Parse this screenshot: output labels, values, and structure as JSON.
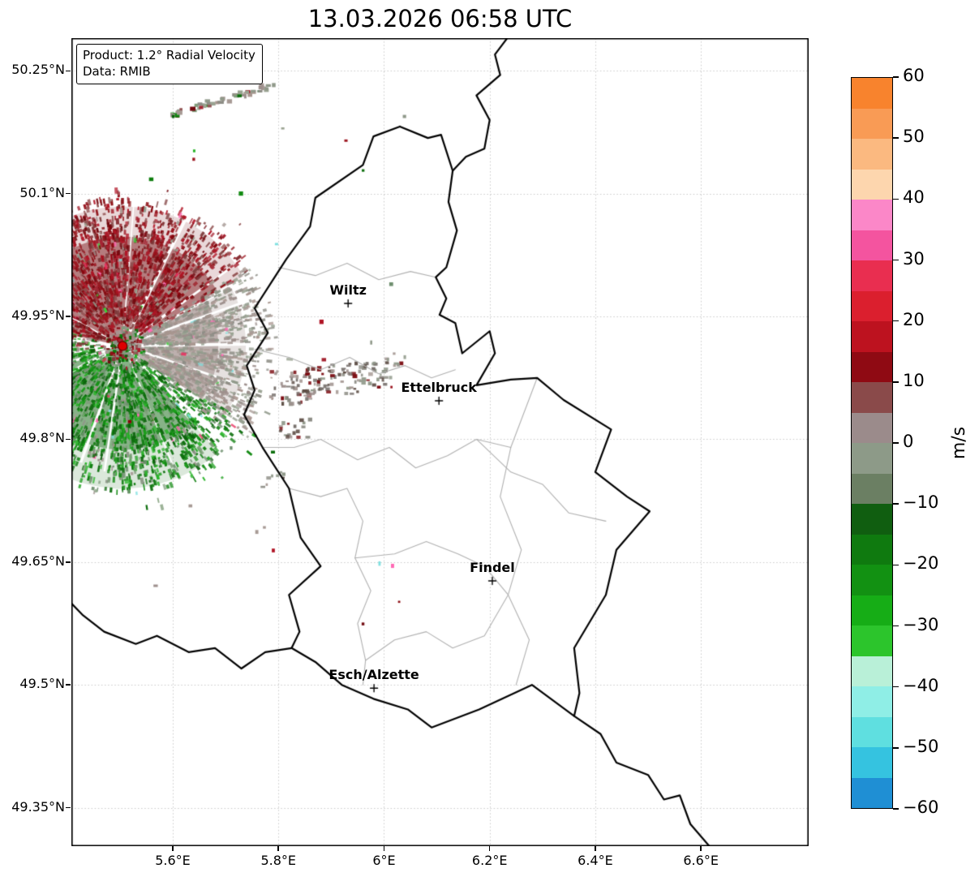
{
  "title": "13.03.2026 06:58 UTC",
  "info_box": {
    "product_line": "Product: 1.2° Radial Velocity",
    "data_line": "Data: RMIB"
  },
  "chart_data": {
    "type": "heatmap",
    "title": "13.03.2026 06:58 UTC",
    "product": "1.2° Radial Velocity",
    "data_source": "RMIB",
    "units": "m/s",
    "grid": true,
    "x_axis": {
      "range": [
        5.408,
        6.804
      ],
      "ticks": [
        5.6,
        5.8,
        6.0,
        6.2,
        6.4,
        6.6
      ],
      "tick_labels": [
        "5.6°E",
        "5.8°E",
        "6°E",
        "6.2°E",
        "6.4°E",
        "6.6°E"
      ]
    },
    "y_axis": {
      "range": [
        49.303,
        50.29
      ],
      "ticks": [
        50.25,
        50.1,
        49.95,
        49.8,
        49.65,
        49.5,
        49.35
      ],
      "tick_labels": [
        "50.25°N",
        "50.1°N",
        "49.95°N",
        "49.8°N",
        "49.65°N",
        "49.5°N",
        "49.35°N"
      ]
    },
    "colorbar": {
      "label": "m/s",
      "min": -60,
      "max": 60,
      "tick_values": [
        60,
        50,
        40,
        30,
        20,
        10,
        0,
        -10,
        -20,
        -30,
        -40,
        -50,
        -60
      ],
      "tick_labels": [
        "60",
        "50",
        "40",
        "30",
        "20",
        "10",
        "0",
        "−10",
        "−20",
        "−30",
        "−40",
        "−50",
        "−60"
      ],
      "segments": [
        {
          "from": 55,
          "to": 60,
          "color": "#f8832d"
        },
        {
          "from": 50,
          "to": 55,
          "color": "#f99b55"
        },
        {
          "from": 45,
          "to": 50,
          "color": "#fbb980"
        },
        {
          "from": 40,
          "to": 45,
          "color": "#fdd6ae"
        },
        {
          "from": 35,
          "to": 40,
          "color": "#fb87c8"
        },
        {
          "from": 30,
          "to": 35,
          "color": "#f4549f"
        },
        {
          "from": 25,
          "to": 30,
          "color": "#e92e50"
        },
        {
          "from": 20,
          "to": 25,
          "color": "#db1f2e"
        },
        {
          "from": 15,
          "to": 20,
          "color": "#bd121f"
        },
        {
          "from": 10,
          "to": 15,
          "color": "#8f0a13"
        },
        {
          "from": 5,
          "to": 10,
          "color": "#8a4a4a"
        },
        {
          "from": 0,
          "to": 5,
          "color": "#9b8b8b"
        },
        {
          "from": -5,
          "to": 0,
          "color": "#8d9a88"
        },
        {
          "from": -10,
          "to": -5,
          "color": "#6b7f63"
        },
        {
          "from": -15,
          "to": -10,
          "color": "#105e10"
        },
        {
          "from": -20,
          "to": -15,
          "color": "#0f7a0f"
        },
        {
          "from": -25,
          "to": -20,
          "color": "#129112"
        },
        {
          "from": -30,
          "to": -25,
          "color": "#16ad16"
        },
        {
          "from": -35,
          "to": -30,
          "color": "#2cc52c"
        },
        {
          "from": -40,
          "to": -35,
          "color": "#b9f0d8"
        },
        {
          "from": -45,
          "to": -40,
          "color": "#8feee6"
        },
        {
          "from": -50,
          "to": -45,
          "color": "#5fdfe0"
        },
        {
          "from": -55,
          "to": -50,
          "color": "#35c3e0"
        },
        {
          "from": -60,
          "to": -55,
          "color": "#1f8fd4"
        }
      ]
    },
    "radar_site": {
      "lon": 5.505,
      "lat": 49.914,
      "marker_color": "#dd0000"
    },
    "echo_summary": {
      "receding_red_sector_deg": [
        282,
        60
      ],
      "near_zero_gray_sector_deg": [
        60,
        124
      ],
      "approaching_green_sector_deg": [
        138,
        258
      ]
    },
    "cities": [
      {
        "name": "Wiltz",
        "lon": 5.932,
        "lat": 49.966
      },
      {
        "name": "Ettelbruck",
        "lon": 6.104,
        "lat": 49.847
      },
      {
        "name": "Findel",
        "lon": 6.205,
        "lat": 49.627
      },
      {
        "name": "Esch/Alzette",
        "lon": 5.981,
        "lat": 49.496
      }
    ]
  },
  "map": {
    "country_border": [
      [
        6.03,
        50.182
      ],
      [
        6.083,
        50.168
      ],
      [
        6.108,
        50.172
      ],
      [
        6.13,
        50.128
      ],
      [
        6.122,
        50.09
      ],
      [
        6.138,
        50.055
      ],
      [
        6.118,
        50.01
      ],
      [
        6.098,
        49.998
      ],
      [
        6.118,
        49.972
      ],
      [
        6.105,
        49.952
      ],
      [
        6.135,
        49.942
      ],
      [
        6.148,
        49.905
      ],
      [
        6.2,
        49.932
      ],
      [
        6.21,
        49.905
      ],
      [
        6.175,
        49.866
      ],
      [
        6.24,
        49.873
      ],
      [
        6.29,
        49.875
      ],
      [
        6.34,
        49.848
      ],
      [
        6.43,
        49.812
      ],
      [
        6.4,
        49.76
      ],
      [
        6.46,
        49.73
      ],
      [
        6.503,
        49.712
      ],
      [
        6.44,
        49.665
      ],
      [
        6.42,
        49.61
      ],
      [
        6.36,
        49.545
      ],
      [
        6.37,
        49.49
      ],
      [
        6.36,
        49.462
      ],
      [
        6.28,
        49.5
      ],
      [
        6.18,
        49.47
      ],
      [
        6.09,
        49.448
      ],
      [
        6.045,
        49.47
      ],
      [
        5.98,
        49.483
      ],
      [
        5.92,
        49.5
      ],
      [
        5.87,
        49.528
      ],
      [
        5.825,
        49.545
      ],
      [
        5.84,
        49.565
      ],
      [
        5.82,
        49.61
      ],
      [
        5.88,
        49.645
      ],
      [
        5.842,
        49.68
      ],
      [
        5.82,
        49.74
      ],
      [
        5.77,
        49.79
      ],
      [
        5.735,
        49.83
      ],
      [
        5.755,
        49.86
      ],
      [
        5.74,
        49.89
      ],
      [
        5.78,
        49.93
      ],
      [
        5.755,
        49.96
      ],
      [
        5.79,
        49.995
      ],
      [
        5.815,
        50.02
      ],
      [
        5.86,
        50.06
      ],
      [
        5.87,
        50.095
      ],
      [
        5.96,
        50.135
      ],
      [
        5.98,
        50.17
      ],
      [
        6.03,
        50.182
      ]
    ],
    "external_borders": [
      [
        [
          6.13,
          50.128
        ],
        [
          6.155,
          50.145
        ],
        [
          6.19,
          50.155
        ],
        [
          6.2,
          50.19
        ],
        [
          6.175,
          50.22
        ],
        [
          6.22,
          50.245
        ],
        [
          6.21,
          50.27
        ],
        [
          6.245,
          50.3
        ]
      ],
      [
        [
          5.825,
          49.545
        ],
        [
          5.775,
          49.54
        ],
        [
          5.73,
          49.52
        ],
        [
          5.68,
          49.545
        ],
        [
          5.63,
          49.54
        ],
        [
          5.57,
          49.56
        ],
        [
          5.53,
          49.55
        ],
        [
          5.47,
          49.565
        ],
        [
          5.43,
          49.585
        ],
        [
          5.4,
          49.605
        ]
      ],
      [
        [
          6.36,
          49.462
        ],
        [
          6.41,
          49.44
        ],
        [
          6.44,
          49.405
        ],
        [
          6.5,
          49.39
        ],
        [
          6.53,
          49.36
        ],
        [
          6.56,
          49.365
        ],
        [
          6.58,
          49.33
        ],
        [
          6.62,
          49.3
        ]
      ]
    ],
    "district_borders": [
      [
        [
          5.77,
          49.79
        ],
        [
          5.83,
          49.79
        ],
        [
          5.88,
          49.8
        ],
        [
          5.95,
          49.775
        ],
        [
          6.01,
          49.79
        ],
        [
          6.06,
          49.765
        ],
        [
          6.12,
          49.78
        ],
        [
          6.175,
          49.8
        ],
        [
          6.24,
          49.79
        ],
        [
          6.29,
          49.875
        ]
      ],
      [
        [
          6.24,
          49.79
        ],
        [
          6.22,
          49.73
        ],
        [
          6.26,
          49.665
        ],
        [
          6.235,
          49.61
        ],
        [
          6.275,
          49.555
        ],
        [
          6.25,
          49.5
        ]
      ],
      [
        [
          5.82,
          49.74
        ],
        [
          5.88,
          49.73
        ],
        [
          5.93,
          49.74
        ],
        [
          5.96,
          49.7
        ],
        [
          5.945,
          49.655
        ],
        [
          5.975,
          49.615
        ],
        [
          5.95,
          49.575
        ],
        [
          5.965,
          49.53
        ],
        [
          5.96,
          49.5
        ]
      ],
      [
        [
          5.945,
          49.655
        ],
        [
          6.02,
          49.66
        ],
        [
          6.08,
          49.675
        ],
        [
          6.14,
          49.66
        ],
        [
          6.19,
          49.645
        ],
        [
          6.235,
          49.61
        ]
      ],
      [
        [
          5.8,
          50.01
        ],
        [
          5.87,
          50.0
        ],
        [
          5.93,
          50.015
        ],
        [
          5.99,
          49.995
        ],
        [
          6.05,
          50.005
        ],
        [
          6.098,
          49.998
        ]
      ],
      [
        [
          5.755,
          49.91
        ],
        [
          5.82,
          49.9
        ],
        [
          5.88,
          49.885
        ],
        [
          5.935,
          49.9
        ],
        [
          5.99,
          49.88
        ],
        [
          6.04,
          49.89
        ],
        [
          6.09,
          49.875
        ],
        [
          6.135,
          49.885
        ]
      ],
      [
        [
          6.175,
          49.8
        ],
        [
          6.24,
          49.76
        ],
        [
          6.3,
          49.745
        ],
        [
          6.35,
          49.71
        ],
        [
          6.42,
          49.7
        ]
      ],
      [
        [
          5.965,
          49.53
        ],
        [
          6.02,
          49.555
        ],
        [
          6.08,
          49.565
        ],
        [
          6.13,
          49.545
        ],
        [
          6.19,
          49.56
        ],
        [
          6.235,
          49.61
        ]
      ]
    ]
  }
}
